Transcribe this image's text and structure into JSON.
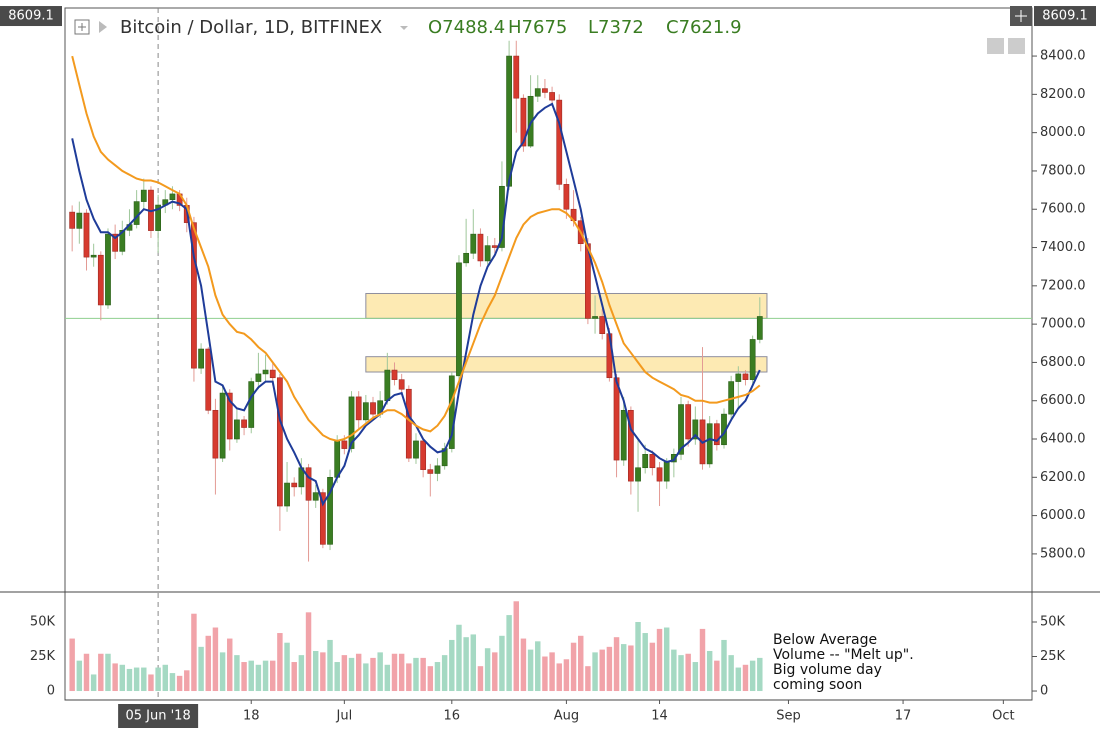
{
  "chart_data": {
    "type": "candlestick",
    "title": "Bitcoin / Dollar, 1D, BITFINEX",
    "ohlc_labels": [
      "O",
      "H",
      "L",
      "C"
    ],
    "header_index": 12,
    "x": [
      "2018-05-24",
      "2018-05-25",
      "2018-05-26",
      "2018-05-27",
      "2018-05-28",
      "2018-05-29",
      "2018-05-30",
      "2018-05-31",
      "2018-06-01",
      "2018-06-02",
      "2018-06-03",
      "2018-06-04",
      "2018-06-05",
      "2018-06-06",
      "2018-06-07",
      "2018-06-08",
      "2018-06-09",
      "2018-06-10",
      "2018-06-11",
      "2018-06-12",
      "2018-06-13",
      "2018-06-14",
      "2018-06-15",
      "2018-06-16",
      "2018-06-17",
      "2018-06-18",
      "2018-06-19",
      "2018-06-20",
      "2018-06-21",
      "2018-06-22",
      "2018-06-23",
      "2018-06-24",
      "2018-06-25",
      "2018-06-26",
      "2018-06-27",
      "2018-06-28",
      "2018-06-29",
      "2018-06-30",
      "2018-07-01",
      "2018-07-02",
      "2018-07-03",
      "2018-07-04",
      "2018-07-05",
      "2018-07-06",
      "2018-07-07",
      "2018-07-08",
      "2018-07-09",
      "2018-07-10",
      "2018-07-11",
      "2018-07-12",
      "2018-07-13",
      "2018-07-14",
      "2018-07-15",
      "2018-07-16",
      "2018-07-17",
      "2018-07-18",
      "2018-07-19",
      "2018-07-20",
      "2018-07-21",
      "2018-07-22",
      "2018-07-23",
      "2018-07-24",
      "2018-07-25",
      "2018-07-26",
      "2018-07-27",
      "2018-07-28",
      "2018-07-29",
      "2018-07-30",
      "2018-07-31",
      "2018-08-01",
      "2018-08-02",
      "2018-08-03",
      "2018-08-04",
      "2018-08-05",
      "2018-08-06",
      "2018-08-07",
      "2018-08-08",
      "2018-08-09",
      "2018-08-10",
      "2018-08-11",
      "2018-08-12",
      "2018-08-13",
      "2018-08-14",
      "2018-08-15",
      "2018-08-16",
      "2018-08-17",
      "2018-08-18",
      "2018-08-19",
      "2018-08-20",
      "2018-08-21",
      "2018-08-22",
      "2018-08-23",
      "2018-08-24",
      "2018-08-25",
      "2018-08-26",
      "2018-08-27",
      "2018-08-28"
    ],
    "open": [
      7585,
      7500,
      7580,
      7350,
      7360,
      7100,
      7470,
      7380,
      7490,
      7520,
      7640,
      7700,
      7488.4,
      7621.9,
      7650,
      7680,
      7620,
      7530,
      6770,
      6870,
      6550,
      6300,
      6640,
      6400,
      6500,
      6460,
      6700,
      6740,
      6760,
      6720,
      6050,
      6170,
      6150,
      6250,
      6080,
      6120,
      5850,
      6200,
      6390,
      6350,
      6620,
      6500,
      6590,
      6530,
      6600,
      6760,
      6710,
      6660,
      6300,
      6390,
      6240,
      6220,
      6260,
      6350,
      6730,
      7320,
      7370,
      7470,
      7330,
      7410,
      7400,
      7720,
      8400,
      8180,
      7930,
      8190,
      8230,
      8210,
      8170,
      7730,
      7600,
      7540,
      7420,
      7030,
      7040,
      6950,
      6720,
      6290,
      6550,
      6180,
      6250,
      6320,
      6250,
      6180,
      6280,
      6320,
      6580,
      6400,
      6500,
      6270,
      6480,
      6370,
      6530,
      6700,
      6740,
      6710,
      6920
    ],
    "high": [
      7620,
      7640,
      7600,
      7420,
      7380,
      7500,
      7520,
      7540,
      7600,
      7700,
      7760,
      7720,
      7675,
      7700,
      7720,
      7700,
      7660,
      7560,
      6900,
      6880,
      6610,
      6680,
      6660,
      6560,
      6520,
      6720,
      6850,
      6840,
      6800,
      6740,
      6280,
      6200,
      6300,
      6270,
      6160,
      6140,
      6240,
      6420,
      6420,
      6650,
      6650,
      6630,
      6620,
      6650,
      6850,
      6800,
      6740,
      6680,
      6430,
      6400,
      6270,
      6300,
      6380,
      6750,
      7360,
      7550,
      7600,
      7500,
      7460,
      7450,
      7850,
      8480,
      8480,
      8200,
      8300,
      8300,
      8280,
      8240,
      8200,
      7760,
      7700,
      7560,
      7450,
      7150,
      7080,
      6980,
      6740,
      6620,
      6570,
      6400,
      6370,
      6340,
      6280,
      6300,
      6350,
      6620,
      6600,
      6570,
      6880,
      6520,
      6500,
      6560,
      6730,
      6780,
      6760,
      6940,
      7140
    ],
    "low": [
      7380,
      7420,
      7280,
      7300,
      7020,
      7080,
      7340,
      7360,
      7460,
      7500,
      7600,
      7450,
      7372,
      7580,
      7600,
      7590,
      7480,
      6700,
      6740,
      6530,
      6110,
      6280,
      6340,
      6380,
      6420,
      6430,
      6660,
      6700,
      6680,
      5920,
      6020,
      6100,
      6110,
      5760,
      6040,
      5830,
      5820,
      6170,
      6320,
      6330,
      6450,
      6480,
      6500,
      6510,
      6580,
      6680,
      6630,
      6280,
      6270,
      6200,
      6100,
      6180,
      6240,
      6330,
      6700,
      7300,
      7340,
      7300,
      7310,
      7370,
      7380,
      7700,
      8000,
      7900,
      7920,
      8160,
      8180,
      8140,
      7700,
      7550,
      7510,
      7380,
      7000,
      6950,
      6920,
      6700,
      6200,
      6260,
      6110,
      6020,
      6220,
      6210,
      6050,
      6140,
      6200,
      6290,
      6360,
      6370,
      6240,
      6250,
      6340,
      6350,
      6500,
      6560,
      6680,
      6690,
      6900
    ],
    "close": [
      7500,
      7580,
      7350,
      7360,
      7100,
      7470,
      7380,
      7490,
      7520,
      7640,
      7700,
      7488.4,
      7621.9,
      7650,
      7680,
      7620,
      7530,
      6770,
      6870,
      6550,
      6300,
      6640,
      6400,
      6500,
      6460,
      6700,
      6740,
      6760,
      6720,
      6050,
      6170,
      6150,
      6250,
      6080,
      6120,
      5850,
      6200,
      6390,
      6350,
      6620,
      6500,
      6590,
      6530,
      6600,
      6760,
      6710,
      6660,
      6300,
      6390,
      6240,
      6220,
      6260,
      6350,
      6730,
      7320,
      7370,
      7470,
      7330,
      7410,
      7400,
      7720,
      8400,
      8180,
      7930,
      8190,
      8230,
      8210,
      8170,
      7730,
      7600,
      7540,
      7420,
      7030,
      7040,
      6950,
      6720,
      6290,
      6550,
      6180,
      6250,
      6320,
      6250,
      6180,
      6280,
      6320,
      6580,
      6400,
      6500,
      6270,
      6480,
      6370,
      6530,
      6700,
      6740,
      6710,
      6920,
      7040
    ],
    "volume": [
      38000,
      22000,
      27000,
      12000,
      27000,
      27000,
      20000,
      19000,
      16000,
      17000,
      17000,
      12000,
      17000,
      19000,
      13000,
      11000,
      15000,
      56000,
      32000,
      40000,
      46000,
      28000,
      38000,
      26000,
      21000,
      22000,
      19000,
      22000,
      22000,
      42000,
      35000,
      21000,
      26000,
      57000,
      29000,
      28000,
      37000,
      21000,
      26000,
      24000,
      27000,
      20000,
      24000,
      28000,
      19000,
      27000,
      27000,
      20000,
      24000,
      24000,
      18000,
      21000,
      26000,
      37000,
      48000,
      39000,
      41000,
      18000,
      31000,
      28000,
      40000,
      55000,
      65000,
      38000,
      30000,
      36000,
      25000,
      28000,
      20000,
      23000,
      35000,
      40000,
      18000,
      28000,
      30000,
      32000,
      39000,
      34000,
      33000,
      50000,
      42000,
      35000,
      45000,
      46000,
      30000,
      26000,
      27000,
      21000,
      45000,
      29000,
      22000,
      37000,
      26000,
      17000,
      19000,
      22000,
      24000
    ],
    "up_color": "#3a7d22",
    "down_color": "#d63a2f",
    "volume_up_color": "#a5d9c3",
    "volume_down_color": "#f1a3a9",
    "moving_averages": [
      {
        "color": "#1f3c99",
        "values": [
          7970,
          7800,
          7650,
          7550,
          7480,
          7480,
          7450,
          7480,
          7520,
          7560,
          7600,
          7590,
          7600,
          7620,
          7640,
          7630,
          7600,
          7350,
          7200,
          6950,
          6700,
          6680,
          6600,
          6560,
          6550,
          6620,
          6670,
          6700,
          6700,
          6500,
          6400,
          6330,
          6250,
          6200,
          6180,
          6060,
          6120,
          6200,
          6260,
          6380,
          6420,
          6470,
          6500,
          6530,
          6600,
          6630,
          6640,
          6520,
          6470,
          6400,
          6360,
          6330,
          6340,
          6420,
          6650,
          6850,
          7050,
          7200,
          7300,
          7360,
          7450,
          7750,
          7900,
          7950,
          8050,
          8100,
          8130,
          8150,
          8050,
          7900,
          7750,
          7600,
          7400,
          7250,
          7100,
          6950,
          6700,
          6600,
          6450,
          6400,
          6350,
          6330,
          6300,
          6280,
          6290,
          6350,
          6380,
          6420,
          6380,
          6400,
          6390,
          6430,
          6500,
          6560,
          6600,
          6680,
          6760
        ]
      },
      {
        "color": "#f39a1e",
        "values": [
          8400,
          8250,
          8100,
          7980,
          7900,
          7860,
          7830,
          7800,
          7780,
          7760,
          7750,
          7750,
          7740,
          7720,
          7700,
          7680,
          7620,
          7500,
          7400,
          7300,
          7150,
          7050,
          7000,
          6960,
          6950,
          6920,
          6880,
          6850,
          6800,
          6750,
          6700,
          6620,
          6560,
          6500,
          6460,
          6420,
          6400,
          6390,
          6400,
          6420,
          6450,
          6480,
          6510,
          6530,
          6550,
          6550,
          6530,
          6500,
          6470,
          6450,
          6440,
          6470,
          6520,
          6600,
          6700,
          6800,
          6900,
          7000,
          7080,
          7150,
          7250,
          7350,
          7450,
          7520,
          7560,
          7580,
          7590,
          7600,
          7600,
          7580,
          7540,
          7480,
          7400,
          7320,
          7220,
          7100,
          7000,
          6900,
          6850,
          6800,
          6750,
          6720,
          6700,
          6680,
          6660,
          6630,
          6620,
          6600,
          6600,
          6590,
          6590,
          6600,
          6610,
          6620,
          6630,
          6650,
          6680
        ]
      }
    ],
    "xlim": [
      "2018-05-23",
      "2018-10-05"
    ],
    "xticks": [
      {
        "value": "2018-06-18",
        "label": "18"
      },
      {
        "value": "2018-07-01",
        "label": "Jul"
      },
      {
        "value": "2018-07-16",
        "label": "16"
      },
      {
        "value": "2018-08-01",
        "label": "Aug"
      },
      {
        "value": "2018-08-14",
        "label": "14"
      },
      {
        "value": "2018-09-01",
        "label": "Sep"
      },
      {
        "value": "2018-09-17",
        "label": "17"
      },
      {
        "value": "2018-10-01",
        "label": "Oct"
      }
    ],
    "ylim": [
      5601,
      8651
    ],
    "yticks": [
      {
        "value": 5800,
        "label": "5800.0"
      },
      {
        "value": 6000,
        "label": "6000.0"
      },
      {
        "value": 6200,
        "label": "6200.0"
      },
      {
        "value": 6400,
        "label": "6400.0"
      },
      {
        "value": 6600,
        "label": "6600.0"
      },
      {
        "value": 6800,
        "label": "6800.0"
      },
      {
        "value": 7000,
        "label": "7000.0"
      },
      {
        "value": 7200,
        "label": "7200.0"
      },
      {
        "value": 7400,
        "label": "7400.0"
      },
      {
        "value": 7600,
        "label": "7600.0"
      },
      {
        "value": 7800,
        "label": "7800.0"
      },
      {
        "value": 8000,
        "label": "8000.0"
      },
      {
        "value": 8200,
        "label": "8200.0"
      },
      {
        "value": 8400,
        "label": "8400.0"
      }
    ],
    "volume_ylim": [
      -6500,
      71000
    ],
    "volume_yticks": [
      0,
      {
        "value": 25000,
        "label": "25K"
      },
      {
        "value": 50000,
        "label": "50K"
      }
    ],
    "price_line": {
      "value": 7030,
      "color": "#8fcf8f"
    },
    "zones": [
      {
        "x": [
          "2018-07-04",
          "2018-08-29"
        ],
        "y": [
          7030,
          7160
        ]
      },
      {
        "x": [
          "2018-07-04",
          "2018-08-29"
        ],
        "y": [
          6750,
          6830
        ]
      }
    ],
    "crosshair": {
      "x": "2018-06-05",
      "label": "05 Jun '18",
      "price": 8609.1
    },
    "annotation": [
      "Below Average",
      "Volume -- \"Melt up\".",
      "Big volume day",
      "coming soon"
    ]
  }
}
